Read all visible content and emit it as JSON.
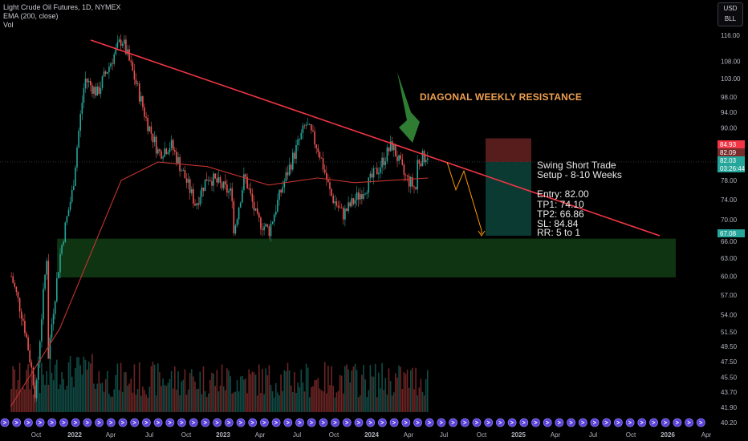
{
  "legend": {
    "symbol": "Light Crude Oil Futures, 1D, NYMEX",
    "ema": "EMA (200, close)",
    "vol": "Vol"
  },
  "currency_box": {
    "currency": "USD",
    "unit": "BLL"
  },
  "annotation": "DIAGONAL WEEKLY RESISTANCE",
  "trade_note": {
    "title_line1": "Swing Short Trade",
    "title_line2": "Setup - 8-10 Weeks",
    "entry": "Entry: 82.00",
    "tp1": "TP1: 74.10",
    "tp2": "TP2: 66.86",
    "sl": "SL: 84.84",
    "rr": "RR: 5 to 1"
  },
  "colors": {
    "background": "#000000",
    "up": "#26a69a",
    "down": "#ef5350",
    "trendline": "#f23645",
    "ema": "#c2342f",
    "support_zone": "#1b5e20",
    "projection": "#ff9800",
    "arrow": "#2e7d32",
    "target_zone": "#0b3d35",
    "stop_zone": "#5c1e1e"
  },
  "chart_data": {
    "type": "candlestick",
    "title": "Light Crude Oil Futures, 1D, NYMEX",
    "xlabel": "",
    "ylabel": "",
    "y_scale": "log",
    "ylim": [
      40.2,
      118.5
    ],
    "x_tick_labels": [
      "Oct",
      "2022",
      "Apr",
      "Jul",
      "Oct",
      "2023",
      "Apr",
      "Jul",
      "Oct",
      "2024",
      "Apr",
      "Jul",
      "Oct",
      "2025",
      "Apr",
      "Jul",
      "Oct",
      "2026",
      "Apr"
    ],
    "y_tick_labels": [
      "116.00",
      "108.00",
      "103.00",
      "98.00",
      "94.00",
      "90.00",
      "82.03",
      "78.00",
      "74.00",
      "70.00",
      "66.00",
      "63.00",
      "60.00",
      "57.00",
      "54.00",
      "51.50",
      "49.50",
      "47.50",
      "45.50",
      "43.70",
      "41.90",
      "40.20"
    ],
    "price_path": [
      {
        "x": "2021-09",
        "y": 60
      },
      {
        "x": "2021-10",
        "y": 53
      },
      {
        "x": "2021-11",
        "y": 43
      },
      {
        "x": "2021-12",
        "y": 66
      },
      {
        "x": "2021-12",
        "y": 48
      },
      {
        "x": "2022-01",
        "y": 64
      },
      {
        "x": "2022-02",
        "y": 76
      },
      {
        "x": "2022-03",
        "y": 103
      },
      {
        "x": "2022-04",
        "y": 99
      },
      {
        "x": "2022-06",
        "y": 115
      },
      {
        "x": "2022-08",
        "y": 92
      },
      {
        "x": "2022-09",
        "y": 84
      },
      {
        "x": "2022-10",
        "y": 86
      },
      {
        "x": "2022-12",
        "y": 73
      },
      {
        "x": "2023-01",
        "y": 79
      },
      {
        "x": "2023-03",
        "y": 75
      },
      {
        "x": "2023-03",
        "y": 66
      },
      {
        "x": "2023-04",
        "y": 79
      },
      {
        "x": "2023-05",
        "y": 70
      },
      {
        "x": "2023-06",
        "y": 68
      },
      {
        "x": "2023-07",
        "y": 76
      },
      {
        "x": "2023-09",
        "y": 91
      },
      {
        "x": "2023-10",
        "y": 85
      },
      {
        "x": "2023-11",
        "y": 75
      },
      {
        "x": "2023-12",
        "y": 71
      },
      {
        "x": "2024-01",
        "y": 74
      },
      {
        "x": "2024-02",
        "y": 77
      },
      {
        "x": "2024-03",
        "y": 81
      },
      {
        "x": "2024-04",
        "y": 86
      },
      {
        "x": "2024-05",
        "y": 79
      },
      {
        "x": "2024-06",
        "y": 76
      },
      {
        "x": "2024-06",
        "y": 82
      },
      {
        "x": "2024-07",
        "y": 84
      },
      {
        "x": "2024-07",
        "y": 82
      }
    ],
    "ema_200": [
      {
        "x": "2021-09",
        "y": 42
      },
      {
        "x": "2022-01",
        "y": 52
      },
      {
        "x": "2022-06",
        "y": 78
      },
      {
        "x": "2022-09",
        "y": 82
      },
      {
        "x": "2023-01",
        "y": 81
      },
      {
        "x": "2023-06",
        "y": 77
      },
      {
        "x": "2023-10",
        "y": 78.5
      },
      {
        "x": "2024-01",
        "y": 77.5
      },
      {
        "x": "2024-07",
        "y": 78.5
      }
    ],
    "trendline": [
      {
        "x": "2022-03",
        "y": 115
      },
      {
        "x": "2025-12",
        "y": 67.5
      }
    ],
    "support_zone": {
      "from": 59.8,
      "to": 66.5,
      "x_from": "2021-12",
      "x_to": "2026-01"
    },
    "projection": [
      {
        "x": "2024-07",
        "y": 82
      },
      {
        "x": "2024-08",
        "y": 76
      },
      {
        "x": "2024-08",
        "y": 80
      },
      {
        "x": "2024-09",
        "y": 68
      }
    ],
    "trade": {
      "entry": 82.0,
      "tp1": 74.1,
      "tp2": 66.86,
      "sl": 84.84
    },
    "price_labels": [
      {
        "value": "84.93",
        "color": "#f23645"
      },
      {
        "value": "82.09",
        "color": "#7a2c2c"
      },
      {
        "value": "82.03",
        "color": "#26a69a"
      },
      {
        "value": "03:26:44",
        "color": "#26a69a"
      },
      {
        "value": "67.08",
        "color": "#26a69a"
      }
    ]
  }
}
